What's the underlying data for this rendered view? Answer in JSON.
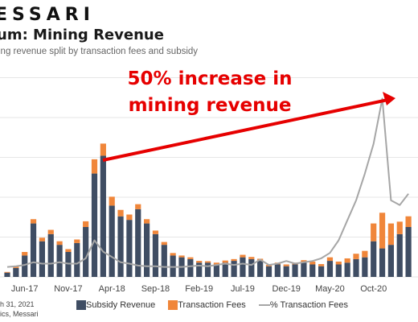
{
  "brand": {
    "name": "ESSARI"
  },
  "header": {
    "title": "um: Mining Revenue",
    "subtitle": "ing revenue split by transaction fees and subsidy"
  },
  "annotation": {
    "line1": "50% increase in",
    "line2": "mining revenue"
  },
  "source": {
    "line1": "h 31, 2021",
    "line2": "ics, Messari"
  },
  "colors": {
    "subsidy": "#3f4d63",
    "fees": "#f0863a",
    "pct_line": "#a6a6a6",
    "arrow": "#e60000",
    "grid": "#e6e6e6"
  },
  "chart_data": {
    "type": "bar",
    "stacked": true,
    "x_tick_labels": [
      "Jun-17",
      "Nov-17",
      "Apr-18",
      "Sep-18",
      "Feb-19",
      "Jul-19",
      "Dec-19",
      "May-20",
      "Oct-20"
    ],
    "x_tick_index": [
      2,
      7,
      12,
      17,
      22,
      27,
      32,
      37,
      42
    ],
    "ylim": [
      0,
      5.6
    ],
    "y2lim": [
      0,
      3.0
    ],
    "grid": true,
    "legend_position": "bottom",
    "series": [
      {
        "name": "Subsidy Revenue",
        "type": "bar",
        "values": [
          0.12,
          0.25,
          0.6,
          1.5,
          1.0,
          1.2,
          0.9,
          0.7,
          0.95,
          1.4,
          2.9,
          3.4,
          2.0,
          1.7,
          1.6,
          1.9,
          1.5,
          1.2,
          0.9,
          0.6,
          0.55,
          0.5,
          0.4,
          0.4,
          0.35,
          0.4,
          0.45,
          0.55,
          0.5,
          0.45,
          0.3,
          0.35,
          0.3,
          0.35,
          0.4,
          0.35,
          0.3,
          0.45,
          0.35,
          0.4,
          0.5,
          0.55,
          1.0,
          0.8,
          0.9,
          1.2,
          1.4
        ]
      },
      {
        "name": "Transaction Fees",
        "type": "bar",
        "values": [
          0.02,
          0.04,
          0.1,
          0.12,
          0.1,
          0.12,
          0.1,
          0.08,
          0.1,
          0.16,
          0.4,
          0.34,
          0.25,
          0.18,
          0.15,
          0.14,
          0.12,
          0.1,
          0.08,
          0.07,
          0.05,
          0.05,
          0.05,
          0.04,
          0.05,
          0.06,
          0.05,
          0.07,
          0.06,
          0.06,
          0.04,
          0.05,
          0.05,
          0.05,
          0.07,
          0.08,
          0.06,
          0.1,
          0.08,
          0.12,
          0.15,
          0.18,
          0.5,
          1.0,
          0.6,
          0.35,
          0.3
        ]
      },
      {
        "name": "% Transaction Fees",
        "type": "line",
        "axis": "secondary",
        "values": [
          0.15,
          0.16,
          0.18,
          0.22,
          0.2,
          0.2,
          0.22,
          0.2,
          0.2,
          0.28,
          0.55,
          0.38,
          0.3,
          0.22,
          0.2,
          0.17,
          0.16,
          0.16,
          0.15,
          0.15,
          0.15,
          0.16,
          0.17,
          0.16,
          0.18,
          0.2,
          0.18,
          0.2,
          0.18,
          0.26,
          0.18,
          0.2,
          0.24,
          0.2,
          0.22,
          0.24,
          0.28,
          0.36,
          0.55,
          0.85,
          1.15,
          1.55,
          2.0,
          2.68,
          1.15,
          1.08,
          1.25
        ]
      }
    ]
  }
}
